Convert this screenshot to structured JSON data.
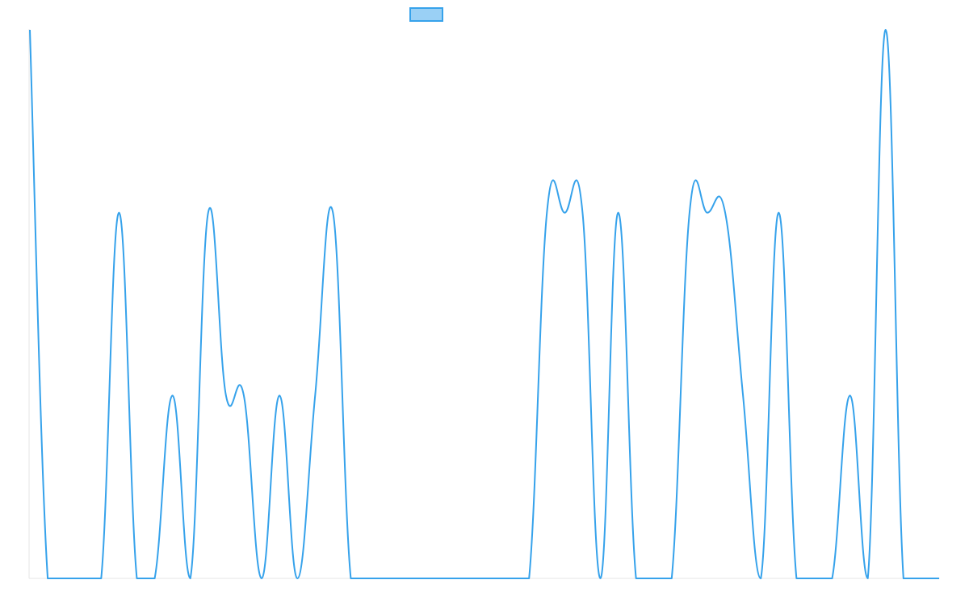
{
  "chart_data": {
    "type": "line",
    "title": "",
    "xlabel": "",
    "ylabel": "",
    "grid": false,
    "legend": {
      "position": "top",
      "entries": [
        {
          "label": "",
          "color": "#36a2eb"
        }
      ]
    },
    "ylim": [
      0,
      3
    ],
    "xlim": [
      0,
      51
    ],
    "x": [
      0,
      1,
      2,
      3,
      4,
      5,
      6,
      7,
      8,
      9,
      10,
      11,
      12,
      13,
      14,
      15,
      16,
      17,
      18,
      19,
      20,
      21,
      22,
      23,
      24,
      25,
      26,
      27,
      28,
      29,
      30,
      31,
      32,
      33,
      34,
      35,
      36,
      37,
      38,
      39,
      40,
      41,
      42,
      43,
      44,
      45,
      46,
      47,
      48,
      49,
      50,
      51
    ],
    "series": [
      {
        "name": "",
        "color": "#36a2eb",
        "fill": "#9ad0f5",
        "values": [
          3,
          0,
          0,
          0,
          0,
          2,
          0,
          0,
          1,
          0,
          2,
          1,
          1,
          0,
          1,
          0,
          1,
          2,
          0,
          0,
          0,
          0,
          0,
          0,
          0,
          0,
          0,
          0,
          0,
          2,
          2,
          2,
          0,
          2,
          0,
          0,
          0,
          2,
          2,
          2,
          1,
          0,
          2,
          0,
          0,
          0,
          1,
          0,
          3,
          0,
          0,
          0
        ]
      }
    ]
  },
  "colors": {
    "line": "#36a2eb",
    "legend_fill": "#9ad0f5",
    "axis": "#e6e6e6"
  }
}
